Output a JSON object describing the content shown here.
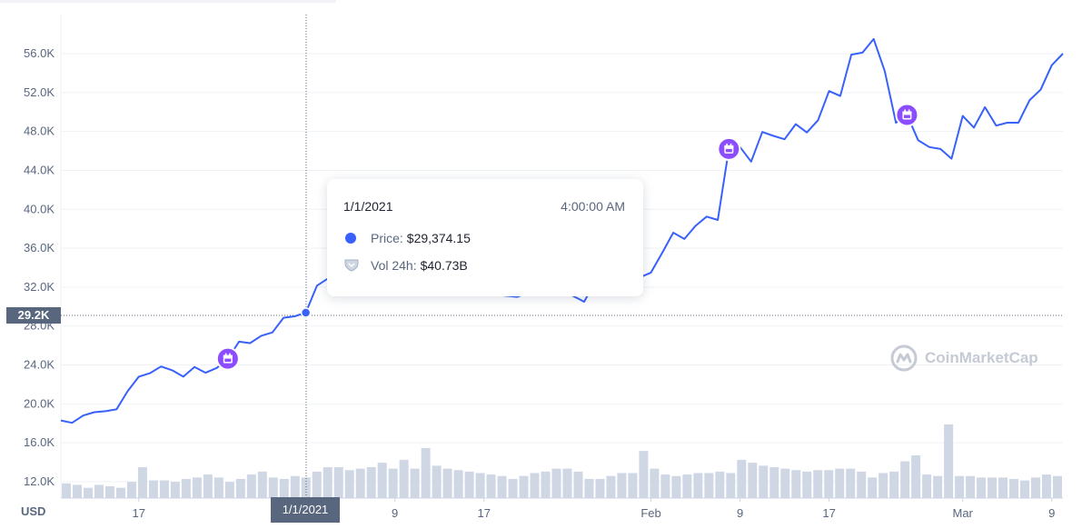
{
  "chart_data": {
    "type": "line",
    "y_axis": {
      "ticks": [
        "12.0K",
        "16.0K",
        "20.0K",
        "24.0K",
        "28.0K",
        "32.0K",
        "36.0K",
        "40.0K",
        "44.0K",
        "48.0K",
        "52.0K",
        "56.0K"
      ],
      "tick_values": [
        12000,
        16000,
        20000,
        24000,
        28000,
        32000,
        36000,
        40000,
        44000,
        48000,
        52000,
        56000
      ],
      "currency_label": "USD",
      "position": "left"
    },
    "x_axis": {
      "ticks": [
        {
          "label": "17",
          "date": "2020-12-17"
        },
        {
          "label": "9",
          "date": "2021-01-09"
        },
        {
          "label": "17",
          "date": "2021-01-17"
        },
        {
          "label": "Feb",
          "date": "2021-02-01"
        },
        {
          "label": "9",
          "date": "2021-02-09"
        },
        {
          "label": "17",
          "date": "2021-02-17"
        },
        {
          "label": "Mar",
          "date": "2021-03-01"
        },
        {
          "label": "9",
          "date": "2021-03-09"
        }
      ],
      "range": [
        "2020-12-10",
        "2021-03-10"
      ]
    },
    "series": [
      {
        "color": "#3861fb",
        "points": [
          [
            "2020-12-10",
            18300
          ],
          [
            "2020-12-11",
            18050
          ],
          [
            "2020-12-12",
            18800
          ],
          [
            "2020-12-13",
            19150
          ],
          [
            "2020-12-14",
            19250
          ],
          [
            "2020-12-15",
            19450
          ],
          [
            "2020-12-16",
            21300
          ],
          [
            "2020-12-17",
            22800
          ],
          [
            "2020-12-18",
            23150
          ],
          [
            "2020-12-19",
            23850
          ],
          [
            "2020-12-20",
            23450
          ],
          [
            "2020-12-21",
            22800
          ],
          [
            "2020-12-22",
            23800
          ],
          [
            "2020-12-23",
            23200
          ],
          [
            "2020-12-24",
            23700
          ],
          [
            "2020-12-25",
            24650
          ],
          [
            "2020-12-26",
            26400
          ],
          [
            "2020-12-27",
            26250
          ],
          [
            "2020-12-28",
            27000
          ],
          [
            "2020-12-29",
            27350
          ],
          [
            "2020-12-30",
            28850
          ],
          [
            "2020-12-31",
            29000
          ],
          [
            "2021-01-01",
            29374.15
          ],
          [
            "2021-01-02",
            32150
          ],
          [
            "2021-01-03",
            32900
          ],
          [
            "2021-01-20",
            31000
          ],
          [
            "2021-01-23",
            32300
          ],
          [
            "2021-01-26",
            30500
          ],
          [
            "2021-01-27",
            32600
          ],
          [
            "2021-01-29",
            33500
          ],
          [
            "2021-01-30",
            34300
          ],
          [
            "2021-01-31",
            33000
          ],
          [
            "2021-02-01",
            33500
          ],
          [
            "2021-02-02",
            35500
          ],
          [
            "2021-02-03",
            37600
          ],
          [
            "2021-02-04",
            36950
          ],
          [
            "2021-02-05",
            38300
          ],
          [
            "2021-02-06",
            39250
          ],
          [
            "2021-02-07",
            38900
          ],
          [
            "2021-02-08",
            46200
          ],
          [
            "2021-02-09",
            46400
          ],
          [
            "2021-02-10",
            44900
          ],
          [
            "2021-02-11",
            47950
          ],
          [
            "2021-02-12",
            47550
          ],
          [
            "2021-02-13",
            47200
          ],
          [
            "2021-02-14",
            48750
          ],
          [
            "2021-02-15",
            47900
          ],
          [
            "2021-02-16",
            49150
          ],
          [
            "2021-02-17",
            52150
          ],
          [
            "2021-02-18",
            51650
          ],
          [
            "2021-02-19",
            55900
          ],
          [
            "2021-02-20",
            56100
          ],
          [
            "2021-02-21",
            57500
          ],
          [
            "2021-02-22",
            54200
          ],
          [
            "2021-02-23",
            48900
          ],
          [
            "2021-02-24",
            49700
          ],
          [
            "2021-02-25",
            47100
          ],
          [
            "2021-02-26",
            46400
          ],
          [
            "2021-02-27",
            46200
          ],
          [
            "2021-02-28",
            45200
          ],
          [
            "2021-03-01",
            49600
          ],
          [
            "2021-03-02",
            48400
          ],
          [
            "2021-03-03",
            50500
          ],
          [
            "2021-03-04",
            48600
          ],
          [
            "2021-03-05",
            48900
          ],
          [
            "2021-03-06",
            48900
          ],
          [
            "2021-03-07",
            51200
          ],
          [
            "2021-03-08",
            52300
          ],
          [
            "2021-03-09",
            54800
          ],
          [
            "2021-03-10",
            56000
          ]
        ]
      }
    ],
    "volume_relative": [
      0.2,
      0.18,
      0.14,
      0.18,
      0.16,
      0.14,
      0.22,
      0.42,
      0.24,
      0.24,
      0.22,
      0.26,
      0.28,
      0.32,
      0.28,
      0.22,
      0.26,
      0.32,
      0.36,
      0.28,
      0.26,
      0.3,
      0.28,
      0.36,
      0.42,
      0.42,
      0.38,
      0.4,
      0.42,
      0.48,
      0.4,
      0.52,
      0.4,
      0.68,
      0.44,
      0.4,
      0.38,
      0.36,
      0.34,
      0.32,
      0.3,
      0.26,
      0.3,
      0.34,
      0.36,
      0.4,
      0.4,
      0.36,
      0.26,
      0.26,
      0.3,
      0.34,
      0.34,
      0.64,
      0.4,
      0.32,
      0.3,
      0.32,
      0.34,
      0.34,
      0.36,
      0.34,
      0.52,
      0.48,
      0.44,
      0.42,
      0.4,
      0.38,
      0.36,
      0.38,
      0.38,
      0.4,
      0.4,
      0.36,
      0.28,
      0.34,
      0.36,
      0.5,
      0.58,
      0.32,
      0.3,
      1.0,
      0.3,
      0.3,
      0.28,
      0.28,
      0.28,
      0.26,
      0.24,
      0.28,
      0.32,
      0.3
    ],
    "events_dates": [
      "2020-12-25",
      "2021-02-08",
      "2021-02-24"
    ],
    "crosshair": {
      "date": "2021-01-01",
      "y_label": "29.2K",
      "x_label": "1/1/2021"
    },
    "tooltip": {
      "date": "1/1/2021",
      "time": "4:00:00 AM",
      "price_label": "Price:",
      "price_value": "$29,374.15",
      "vol_label": "Vol 24h:",
      "vol_value": "$40.73B"
    },
    "grid": true,
    "colors": {
      "line": "#3861fb",
      "volume": "#cfd6e4",
      "event": "#8c4cff",
      "axis_text": "#58667e",
      "badge": "#58667e"
    }
  },
  "watermark": "CoinMarketCap"
}
